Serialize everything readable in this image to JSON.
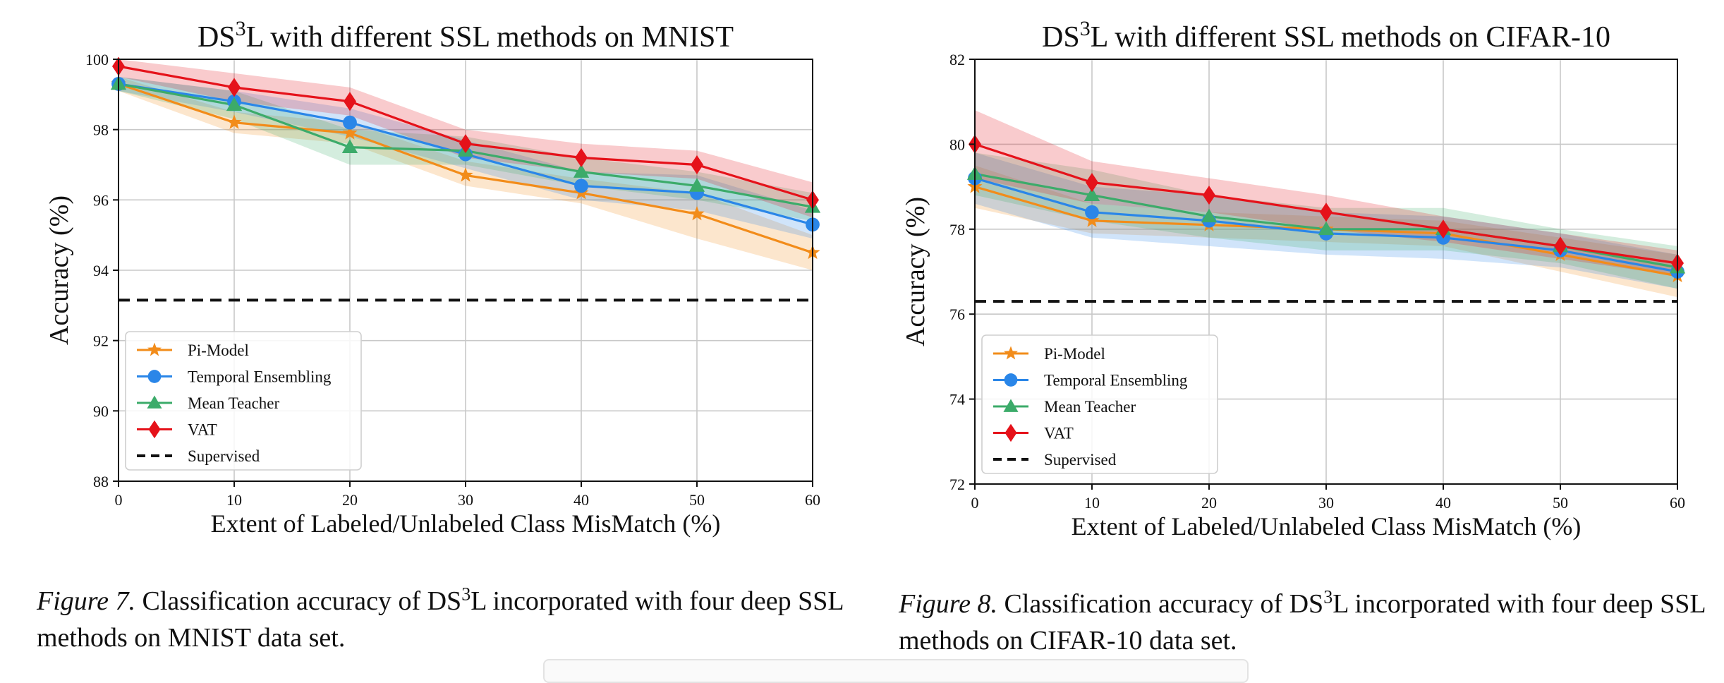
{
  "chart_data": [
    {
      "type": "line",
      "title_prefix": "DS",
      "title_sup": "3",
      "title_suffix": "L with different SSL methods on MNIST",
      "xlabel": "Extent of Labeled/Unlabeled Class MisMatch (%)",
      "ylabel": "Accuracy (%)",
      "xlim": [
        0,
        60
      ],
      "ylim": [
        88,
        100
      ],
      "xticks": [
        0,
        10,
        20,
        30,
        40,
        50,
        60
      ],
      "yticks": [
        88,
        90,
        92,
        94,
        96,
        98,
        100
      ],
      "grid": true,
      "legend_position": "lower-left",
      "x": [
        0,
        10,
        20,
        30,
        40,
        50,
        60
      ],
      "series": [
        {
          "name": "Pi-Model",
          "color": "#f28c1a",
          "marker": "star",
          "values": [
            99.3,
            98.2,
            97.9,
            96.7,
            96.2,
            95.6,
            94.5
          ],
          "lower": [
            99.1,
            97.9,
            97.6,
            96.4,
            95.9,
            94.9,
            94.0
          ],
          "upper": [
            99.5,
            98.5,
            98.2,
            97.1,
            96.6,
            96.2,
            95.0
          ]
        },
        {
          "name": "Temporal Ensembling",
          "color": "#2a86e8",
          "marker": "circle",
          "values": [
            99.3,
            98.8,
            98.2,
            97.3,
            96.4,
            96.2,
            95.3
          ],
          "lower": [
            99.1,
            98.5,
            97.8,
            96.9,
            96.0,
            95.7,
            94.9
          ],
          "upper": [
            99.5,
            99.1,
            98.6,
            97.7,
            96.8,
            96.7,
            95.7
          ]
        },
        {
          "name": "Mean Teacher",
          "color": "#3cab6a",
          "marker": "triangle",
          "values": [
            99.3,
            98.7,
            97.5,
            97.4,
            96.8,
            96.4,
            95.8
          ],
          "lower": [
            99.1,
            98.3,
            97.0,
            97.0,
            96.4,
            96.0,
            95.4
          ],
          "upper": [
            99.5,
            99.1,
            98.0,
            97.8,
            97.2,
            96.8,
            96.2
          ]
        },
        {
          "name": "VAT",
          "color": "#e5121a",
          "marker": "diamond",
          "values": [
            99.8,
            99.2,
            98.8,
            97.6,
            97.2,
            97.0,
            96.0
          ],
          "lower": [
            99.5,
            98.8,
            98.4,
            97.2,
            96.8,
            96.6,
            95.5
          ],
          "upper": [
            100.0,
            99.6,
            99.2,
            98.0,
            97.6,
            97.4,
            96.5
          ]
        },
        {
          "name": "Supervised",
          "color": "#111111",
          "marker": "none",
          "dashed": true,
          "values": [
            93.15,
            93.15,
            93.15,
            93.15,
            93.15,
            93.15,
            93.15
          ]
        }
      ],
      "caption_label": "Figure 7.",
      "caption_text_a": " Classification accuracy of DS",
      "caption_sup": "3",
      "caption_text_b": "L incorporated with four deep SSL methods on MNIST data set."
    },
    {
      "type": "line",
      "title_prefix": "DS",
      "title_sup": "3",
      "title_suffix": "L with different SSL methods on CIFAR-10",
      "xlabel": "Extent of Labeled/Unlabeled Class MisMatch (%)",
      "ylabel": "Accuracy (%)",
      "xlim": [
        0,
        60
      ],
      "ylim": [
        72,
        82
      ],
      "xticks": [
        0,
        10,
        20,
        30,
        40,
        50,
        60
      ],
      "yticks": [
        72,
        74,
        76,
        78,
        80,
        82
      ],
      "grid": true,
      "legend_position": "lower-left",
      "x": [
        0,
        10,
        20,
        30,
        40,
        50,
        60
      ],
      "series": [
        {
          "name": "Pi-Model",
          "color": "#f28c1a",
          "marker": "star",
          "values": [
            79.0,
            78.2,
            78.1,
            78.0,
            77.9,
            77.4,
            76.9
          ],
          "lower": [
            78.5,
            77.9,
            77.8,
            77.7,
            77.6,
            77.0,
            76.4
          ],
          "upper": [
            79.5,
            78.6,
            78.4,
            78.3,
            78.2,
            77.8,
            77.4
          ]
        },
        {
          "name": "Temporal Ensembling",
          "color": "#2a86e8",
          "marker": "circle",
          "values": [
            79.2,
            78.4,
            78.2,
            77.9,
            77.8,
            77.5,
            77.0
          ],
          "lower": [
            78.6,
            77.8,
            77.6,
            77.4,
            77.3,
            77.1,
            76.6
          ],
          "upper": [
            79.8,
            79.0,
            78.8,
            78.4,
            78.3,
            77.9,
            77.4
          ]
        },
        {
          "name": "Mean Teacher",
          "color": "#3cab6a",
          "marker": "triangle",
          "values": [
            79.3,
            78.8,
            78.3,
            78.0,
            78.0,
            77.6,
            77.1
          ],
          "lower": [
            78.8,
            78.2,
            77.8,
            77.5,
            77.5,
            77.2,
            76.6
          ],
          "upper": [
            79.8,
            79.4,
            78.8,
            78.5,
            78.5,
            78.0,
            77.6
          ]
        },
        {
          "name": "VAT",
          "color": "#e5121a",
          "marker": "diamond",
          "values": [
            80.0,
            79.1,
            78.8,
            78.4,
            78.0,
            77.6,
            77.2
          ],
          "lower": [
            79.2,
            78.6,
            78.4,
            78.0,
            77.7,
            77.3,
            76.9
          ],
          "upper": [
            80.8,
            79.6,
            79.2,
            78.8,
            78.3,
            77.9,
            77.5
          ]
        },
        {
          "name": "Supervised",
          "color": "#111111",
          "marker": "none",
          "dashed": true,
          "values": [
            76.3,
            76.3,
            76.3,
            76.3,
            76.3,
            76.3,
            76.3
          ]
        }
      ],
      "caption_label": "Figure 8.",
      "caption_text_a": " Classification accuracy of DS",
      "caption_sup": "3",
      "caption_text_b": "L incorporated with four deep SSL methods on CIFAR-10 data set."
    }
  ]
}
